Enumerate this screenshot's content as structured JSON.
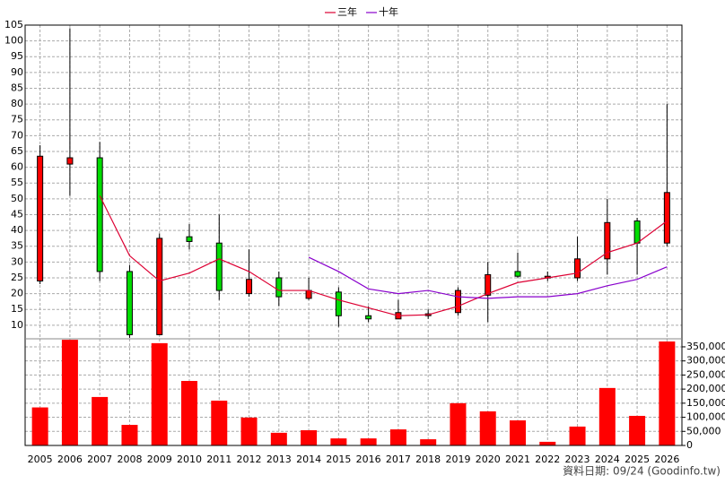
{
  "chart_data": {
    "type": "candlestick",
    "categories": [
      "2005",
      "2006",
      "2007",
      "2008",
      "2009",
      "2010",
      "2011",
      "2012",
      "2013",
      "2014",
      "2015",
      "2016",
      "2017",
      "2018",
      "2019",
      "2020",
      "2021",
      "2022",
      "2023",
      "2024",
      "2025",
      "2026"
    ],
    "open": [
      24,
      61,
      63,
      27,
      7,
      38,
      36,
      20,
      25,
      18.5,
      20.5,
      13,
      12,
      13.3,
      14,
      19.5,
      27,
      25,
      25,
      31,
      43,
      36
    ],
    "high": [
      67,
      104,
      68,
      29,
      39,
      42,
      45,
      34,
      27,
      25,
      22,
      16,
      18,
      15,
      22,
      30,
      33,
      27,
      38,
      50,
      44,
      80
    ],
    "low": [
      23,
      51,
      24,
      6,
      7,
      34,
      18,
      19,
      16,
      18,
      9.5,
      11,
      12,
      12,
      13,
      11,
      25,
      24,
      24,
      26,
      26,
      35
    ],
    "close": [
      63.5,
      63,
      27,
      7,
      37.5,
      36.5,
      21,
      24.5,
      19,
      21,
      13,
      12,
      14,
      13.6,
      21,
      26,
      25.5,
      25.5,
      31,
      42.5,
      36,
      52
    ],
    "up_color": "#ff0000",
    "down_color": "#00dd00",
    "series": [
      {
        "name": "三年",
        "color": "#dd0033",
        "values": [
          null,
          null,
          51,
          32,
          24,
          26.5,
          31,
          27,
          21,
          21,
          18,
          15.5,
          13,
          13.3,
          16,
          20,
          23.5,
          25,
          26.5,
          33,
          36,
          43
        ]
      },
      {
        "name": "十年",
        "color": "#8800cc",
        "values": [
          null,
          null,
          null,
          null,
          null,
          null,
          null,
          null,
          null,
          31.5,
          27,
          21.5,
          20,
          21,
          19,
          18.5,
          19,
          19,
          20,
          22.5,
          24.5,
          28.5
        ]
      }
    ],
    "ylim": [
      5.7,
      105
    ],
    "yticks": [
      10,
      15,
      20,
      25,
      30,
      35,
      40,
      45,
      50,
      55,
      60,
      65,
      70,
      75,
      80,
      85,
      90,
      95,
      100,
      105
    ],
    "grid": true,
    "legend": "top",
    "volume": {
      "color": "#ff0000",
      "values": [
        135000,
        375000,
        172000,
        73000,
        363000,
        229000,
        159000,
        99000,
        45000,
        54000,
        25000,
        25000,
        57000,
        22000,
        150000,
        121000,
        89000,
        13000,
        67000,
        204000,
        105000,
        369000
      ],
      "ylim": [
        0,
        378500
      ],
      "yticks": [
        0,
        {
          "value": 50000,
          "label": "50,000"
        },
        {
          "value": 100000,
          "label": "100,000"
        },
        {
          "value": 150000,
          "label": "150,000"
        },
        {
          "value": 200000,
          "label": "200,000"
        },
        {
          "value": 250000,
          "label": "250,000"
        },
        {
          "value": 300000,
          "label": "300,000"
        },
        {
          "value": 350000,
          "label": "350,000"
        }
      ]
    },
    "footnote": "資料日期: 09/24 (Goodinfo.tw)"
  }
}
